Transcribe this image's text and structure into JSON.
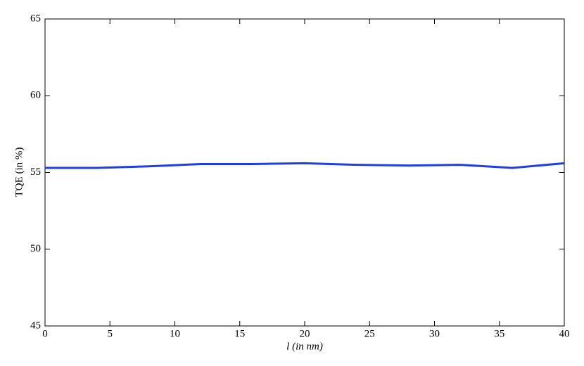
{
  "chart_data": {
    "type": "line",
    "xlabel": "l (in nm)",
    "ylabel": "TQE (in %)",
    "x": [
      0,
      4,
      8,
      12,
      16,
      20,
      24,
      28,
      32,
      36,
      40
    ],
    "series": [
      {
        "color": "#1f3fe6",
        "values": [
          55.3,
          55.3,
          55.4,
          55.55,
          55.55,
          55.6,
          55.5,
          55.45,
          55.5,
          55.3,
          55.6
        ]
      }
    ],
    "xlim": [
      0,
      40
    ],
    "xticks": [
      0,
      5,
      10,
      15,
      20,
      25,
      30,
      35,
      40
    ],
    "ylim": [
      45,
      65
    ],
    "yticks": [
      45,
      50,
      55,
      60,
      65
    ],
    "grid": false
  }
}
